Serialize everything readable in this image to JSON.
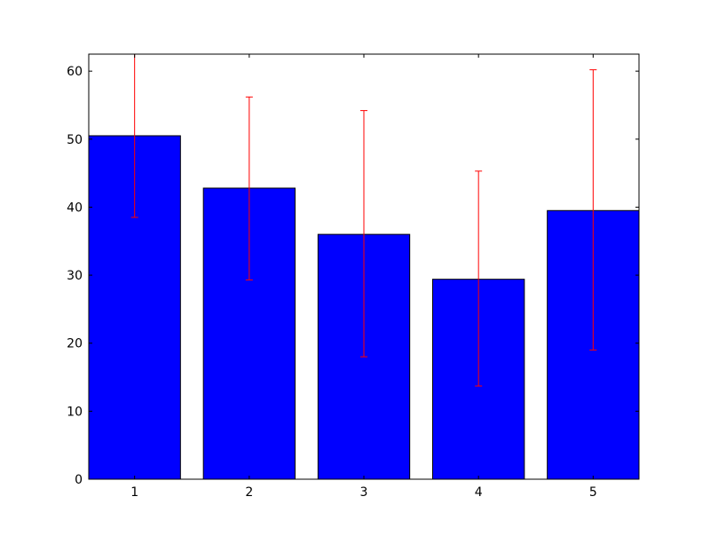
{
  "chart_data": {
    "type": "bar",
    "categories": [
      "1",
      "2",
      "3",
      "4",
      "5"
    ],
    "values": [
      50.5,
      42.8,
      36.0,
      29.4,
      39.5
    ],
    "error_low": [
      38.5,
      29.3,
      18.0,
      13.7,
      19.0
    ],
    "error_high": [
      62.5,
      56.2,
      54.2,
      45.3,
      60.2
    ],
    "ylim": [
      0,
      62.5
    ],
    "yticks": [
      0,
      10,
      20,
      30,
      40,
      50,
      60
    ],
    "grid": false,
    "colors": {
      "bar_fill": "#0000ff",
      "bar_edge": "#000000",
      "error_bar": "#ff0000"
    }
  }
}
